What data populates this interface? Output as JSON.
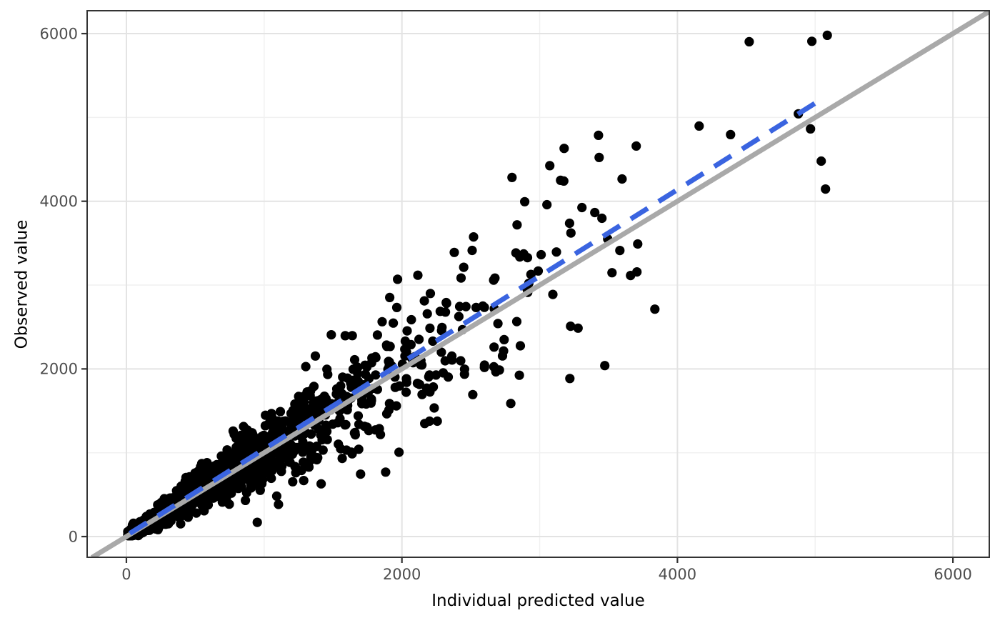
{
  "chart_data": {
    "type": "scatter",
    "title": "",
    "xlabel": "Individual predicted value",
    "ylabel": "Observed value",
    "xlim": [
      -285,
      6264
    ],
    "ylim": [
      -247,
      6273
    ],
    "x_ticks": {
      "values": [
        0,
        2000,
        4000,
        6000
      ],
      "labels": [
        "0",
        "2000",
        "4000",
        "6000"
      ]
    },
    "y_ticks": {
      "values": [
        0,
        2000,
        4000,
        6000
      ],
      "labels": [
        "0",
        "2000",
        "4000",
        "6000"
      ]
    },
    "x_minor_gridlines": [
      1000,
      3000,
      5000
    ],
    "y_minor_gridlines": [
      1000,
      3000,
      5000
    ],
    "grid": true,
    "legend": false,
    "identity_line": {
      "name": "identity-line y=x",
      "x": [
        -250,
        6264
      ],
      "y": [
        -250,
        6264
      ],
      "color": "#a9a9a9",
      "width": 7,
      "dash": "solid"
    },
    "fit_line": {
      "name": "linear-fit-line",
      "x": [
        25,
        5010
      ],
      "y": [
        38,
        5180
      ],
      "color": "#3a64e0",
      "width": 7,
      "dash": [
        28,
        18
      ]
    },
    "points": {
      "color": "#000000",
      "radius": 6.6,
      "count_total": 1534,
      "cloud": {
        "note": "dense heteroscedastic cloud hugging the identity line, approximated by seeded generator",
        "n": 1500,
        "seed": 77,
        "x_exponential_mean": 780,
        "x_range": [
          10,
          3300
        ],
        "mult_mean": 1.015,
        "mult_sd": 0.21,
        "mult_clamp": [
          0.45,
          1.75
        ],
        "additive_sd": 28,
        "y_min": 12
      },
      "outliers": [
        [
          950,
          170
        ],
        [
          1104,
          384
        ],
        [
          1700,
          745
        ],
        [
          1882,
          769
        ],
        [
          3219,
          1885
        ],
        [
          3473,
          2040
        ],
        [
          3836,
          2713
        ],
        [
          3400,
          3865
        ],
        [
          3452,
          3797
        ],
        [
          3494,
          3550
        ],
        [
          3582,
          3413
        ],
        [
          3712,
          3490
        ],
        [
          3525,
          3148
        ],
        [
          3660,
          3114
        ],
        [
          3706,
          3157
        ],
        [
          2799,
          4284
        ],
        [
          3152,
          4250
        ],
        [
          3598,
          4266
        ],
        [
          3427,
          4787
        ],
        [
          3701,
          4659
        ],
        [
          3432,
          4522
        ],
        [
          3053,
          3959
        ],
        [
          3307,
          3925
        ],
        [
          2520,
          3575
        ],
        [
          2380,
          3390
        ],
        [
          4158,
          4897
        ],
        [
          4386,
          4795
        ],
        [
          4521,
          5903
        ],
        [
          4976,
          5908
        ],
        [
          5088,
          5980
        ],
        [
          4966,
          4863
        ],
        [
          5044,
          4479
        ],
        [
          5075,
          4146
        ],
        [
          4878,
          5043
        ]
      ]
    },
    "colors": {
      "background": "#ffffff",
      "panel_background": "#ffffff",
      "panel_border": "#333333",
      "grid_major": "#e3e3e3",
      "grid_minor": "#f1f1f1",
      "tick_mark": "#333333",
      "tick_label": "#4d4d4d",
      "axis_title": "#000000"
    },
    "font_sizes": {
      "tick_label": 21,
      "axis_title": 23
    }
  }
}
